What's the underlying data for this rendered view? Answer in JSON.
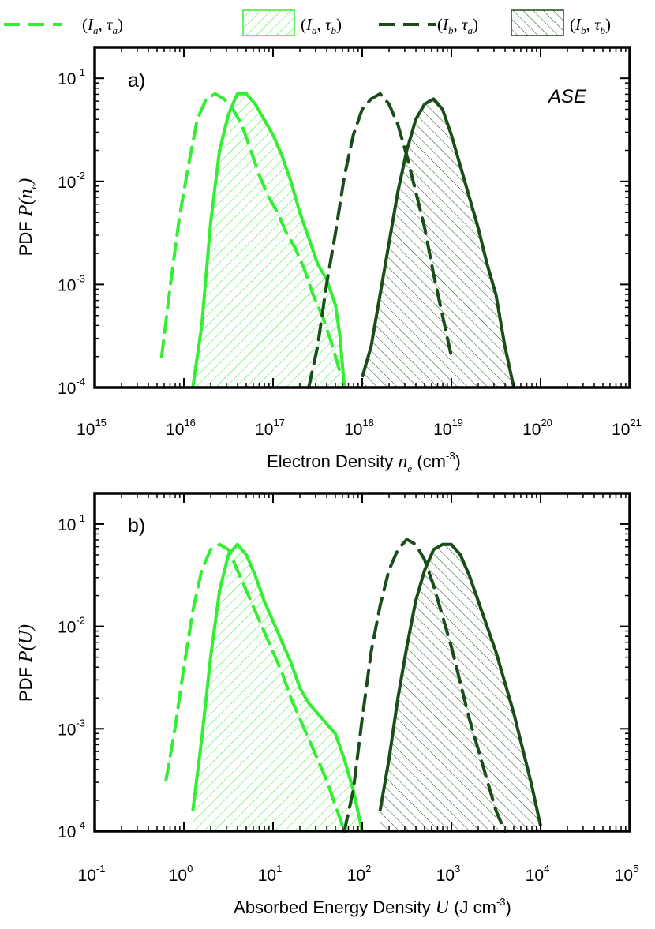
{
  "legend": [
    {
      "I": "I",
      "I_sub": "a",
      "tau": "τ",
      "tau_sub": "a",
      "style": "dashed"
    },
    {
      "I": "I",
      "I_sub": "a",
      "tau": "τ",
      "tau_sub": "b",
      "style": "hatched"
    },
    {
      "I": "I",
      "I_sub": "b",
      "tau": "τ",
      "tau_sub": "a",
      "style": "dashed"
    },
    {
      "I": "I",
      "I_sub": "b",
      "tau": "τ",
      "tau_sub": "b",
      "style": "hatched"
    }
  ],
  "colors": {
    "light": "#33ee33",
    "dark": "#1a4d1a",
    "axis": "#000000"
  },
  "chart_data": [
    {
      "type": "line",
      "panel_label": "a)",
      "annotation": "ASE",
      "xlabel": "Electron Density",
      "xlabel_symbol": "n",
      "xlabel_symbol_sub": "e",
      "xlabel_units": "(cm",
      "xlabel_units_exp": "-3",
      "xlabel_units_end": ")",
      "ylabel": "PDF",
      "ylabel_symbol": "P(n",
      "ylabel_symbol_sub": "e",
      "ylabel_symbol_end": ")",
      "xscale": "log",
      "xlim": [
        15,
        21
      ],
      "yscale": "log",
      "ylim": [
        -4,
        -0.7
      ],
      "x_ticks": [
        {
          "base": "10",
          "exp": "15",
          "value": 15
        },
        {
          "base": "10",
          "exp": "16",
          "value": 16
        },
        {
          "base": "10",
          "exp": "17",
          "value": 17
        },
        {
          "base": "10",
          "exp": "18",
          "value": 18
        },
        {
          "base": "10",
          "exp": "19",
          "value": 19
        },
        {
          "base": "10",
          "exp": "20",
          "value": 20
        },
        {
          "base": "10",
          "exp": "21",
          "value": 21
        }
      ],
      "y_ticks": [
        {
          "base": "10",
          "exp": "-4",
          "value": -4
        },
        {
          "base": "10",
          "exp": "-3",
          "value": -3
        },
        {
          "base": "10",
          "exp": "-2",
          "value": -2
        },
        {
          "base": "10",
          "exp": "-1",
          "value": -1
        }
      ],
      "series": [
        {
          "name": "(Ia, τa)",
          "style": "dashed",
          "color": "light",
          "log10_x": [
            15.75,
            15.85,
            15.95,
            16.05,
            16.15,
            16.25,
            16.35,
            16.45,
            16.55,
            16.65,
            16.75,
            16.85,
            16.95,
            17.05,
            17.15,
            17.25,
            17.35,
            17.45,
            17.55,
            17.65,
            17.75
          ],
          "log10_y": [
            -3.7,
            -3.0,
            -2.35,
            -1.85,
            -1.4,
            -1.2,
            -1.15,
            -1.2,
            -1.3,
            -1.45,
            -1.7,
            -1.95,
            -2.15,
            -2.3,
            -2.5,
            -2.65,
            -2.85,
            -3.1,
            -3.3,
            -3.55,
            -3.85
          ]
        },
        {
          "name": "(Ia, τb)",
          "style": "hatched",
          "color": "light",
          "log10_x": [
            16.1,
            16.2,
            16.3,
            16.4,
            16.5,
            16.6,
            16.7,
            16.8,
            16.9,
            17.0,
            17.1,
            17.2,
            17.3,
            17.4,
            17.5,
            17.6,
            17.7,
            17.75,
            17.8
          ],
          "log10_y": [
            -4.0,
            -3.4,
            -2.4,
            -1.7,
            -1.35,
            -1.15,
            -1.15,
            -1.25,
            -1.4,
            -1.55,
            -1.75,
            -2.0,
            -2.3,
            -2.55,
            -2.8,
            -2.95,
            -3.2,
            -3.5,
            -4.0
          ]
        },
        {
          "name": "(Ib, τa)",
          "style": "dashed",
          "color": "dark",
          "log10_x": [
            17.4,
            17.5,
            17.6,
            17.7,
            17.8,
            17.9,
            18.0,
            18.1,
            18.2,
            18.3,
            18.4,
            18.5,
            18.6,
            18.7,
            18.8,
            18.9,
            19.0
          ],
          "log10_y": [
            -4.0,
            -3.6,
            -3.0,
            -2.5,
            -1.95,
            -1.55,
            -1.3,
            -1.2,
            -1.15,
            -1.25,
            -1.45,
            -1.75,
            -2.1,
            -2.45,
            -2.9,
            -3.3,
            -3.7
          ]
        },
        {
          "name": "(Ib, τb)",
          "style": "hatched",
          "color": "dark",
          "log10_x": [
            18.0,
            18.1,
            18.2,
            18.3,
            18.4,
            18.5,
            18.6,
            18.7,
            18.8,
            18.9,
            19.0,
            19.1,
            19.2,
            19.3,
            19.4,
            19.5,
            19.6,
            19.7
          ],
          "log10_y": [
            -3.9,
            -3.6,
            -3.1,
            -2.6,
            -2.1,
            -1.7,
            -1.4,
            -1.25,
            -1.2,
            -1.3,
            -1.55,
            -1.85,
            -2.15,
            -2.45,
            -2.8,
            -3.1,
            -3.6,
            -4.0
          ]
        }
      ]
    },
    {
      "type": "line",
      "panel_label": "b)",
      "annotation": "",
      "xlabel": "Absorbed Energy Density",
      "xlabel_symbol": "U",
      "xlabel_symbol_sub": "",
      "xlabel_units": "(J cm",
      "xlabel_units_exp": "-3",
      "xlabel_units_end": ")",
      "ylabel": "PDF",
      "ylabel_symbol": "P(U",
      "ylabel_symbol_sub": "",
      "ylabel_symbol_end": ")",
      "xscale": "log",
      "xlim": [
        -1,
        5
      ],
      "yscale": "log",
      "ylim": [
        -4,
        -0.7
      ],
      "x_ticks": [
        {
          "base": "10",
          "exp": "-1",
          "value": -1
        },
        {
          "base": "10",
          "exp": "0",
          "value": 0
        },
        {
          "base": "10",
          "exp": "1",
          "value": 1
        },
        {
          "base": "10",
          "exp": "2",
          "value": 2
        },
        {
          "base": "10",
          "exp": "3",
          "value": 3
        },
        {
          "base": "10",
          "exp": "4",
          "value": 4
        },
        {
          "base": "10",
          "exp": "5",
          "value": 5
        }
      ],
      "y_ticks": [
        {
          "base": "10",
          "exp": "-4",
          "value": -4
        },
        {
          "base": "10",
          "exp": "-3",
          "value": -3
        },
        {
          "base": "10",
          "exp": "-2",
          "value": -2
        },
        {
          "base": "10",
          "exp": "-1",
          "value": -1
        }
      ],
      "series": [
        {
          "name": "(Ia, τa)",
          "style": "dashed",
          "color": "light",
          "log10_x": [
            -0.2,
            -0.1,
            0.0,
            0.1,
            0.2,
            0.3,
            0.4,
            0.5,
            0.6,
            0.7,
            0.8,
            0.9,
            1.0,
            1.1,
            1.2,
            1.3,
            1.4,
            1.5,
            1.6,
            1.7,
            1.8
          ],
          "log10_y": [
            -3.5,
            -3.0,
            -2.4,
            -1.85,
            -1.45,
            -1.25,
            -1.2,
            -1.25,
            -1.45,
            -1.65,
            -1.85,
            -2.05,
            -2.25,
            -2.45,
            -2.7,
            -2.9,
            -3.1,
            -3.3,
            -3.5,
            -3.75,
            -4.0
          ]
        },
        {
          "name": "(Ia, τb)",
          "style": "hatched",
          "color": "light",
          "log10_x": [
            0.1,
            0.2,
            0.3,
            0.4,
            0.5,
            0.6,
            0.7,
            0.8,
            0.9,
            1.0,
            1.1,
            1.2,
            1.3,
            1.4,
            1.5,
            1.6,
            1.7,
            1.8,
            1.9,
            2.0
          ],
          "log10_y": [
            -3.8,
            -3.1,
            -2.3,
            -1.65,
            -1.3,
            -1.2,
            -1.3,
            -1.5,
            -1.75,
            -1.95,
            -2.15,
            -2.35,
            -2.6,
            -2.75,
            -2.85,
            -2.95,
            -3.05,
            -3.3,
            -3.6,
            -4.0
          ]
        },
        {
          "name": "(Ib, τa)",
          "style": "dashed",
          "color": "dark",
          "log10_x": [
            1.8,
            1.9,
            2.0,
            2.1,
            2.2,
            2.3,
            2.4,
            2.5,
            2.6,
            2.7,
            2.8,
            2.9,
            3.0,
            3.1,
            3.2,
            3.3,
            3.4,
            3.5,
            3.6
          ],
          "log10_y": [
            -4.0,
            -3.6,
            -2.9,
            -2.25,
            -1.8,
            -1.45,
            -1.25,
            -1.15,
            -1.2,
            -1.35,
            -1.6,
            -1.9,
            -2.2,
            -2.55,
            -2.9,
            -3.2,
            -3.5,
            -3.8,
            -4.0
          ]
        },
        {
          "name": "(Ib, τb)",
          "style": "hatched",
          "color": "dark",
          "log10_x": [
            2.2,
            2.3,
            2.4,
            2.5,
            2.6,
            2.7,
            2.8,
            2.9,
            3.0,
            3.1,
            3.2,
            3.3,
            3.4,
            3.5,
            3.6,
            3.7,
            3.8,
            3.9,
            4.0
          ],
          "log10_y": [
            -3.8,
            -3.3,
            -2.7,
            -2.2,
            -1.75,
            -1.45,
            -1.25,
            -1.2,
            -1.2,
            -1.3,
            -1.5,
            -1.75,
            -2.0,
            -2.25,
            -2.55,
            -2.85,
            -3.2,
            -3.55,
            -3.95
          ]
        }
      ]
    }
  ]
}
